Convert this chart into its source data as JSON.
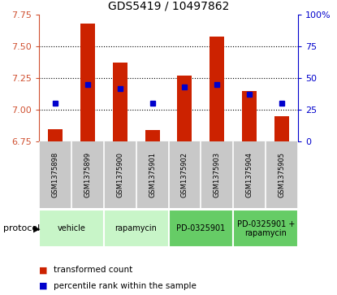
{
  "title": "GDS5419 / 10497862",
  "samples": [
    "GSM1375898",
    "GSM1375899",
    "GSM1375900",
    "GSM1375901",
    "GSM1375902",
    "GSM1375903",
    "GSM1375904",
    "GSM1375905"
  ],
  "transformed_counts": [
    6.85,
    7.68,
    7.37,
    6.84,
    7.27,
    7.58,
    7.15,
    6.95
  ],
  "percentile_ranks": [
    30,
    45,
    42,
    30,
    43,
    45,
    37,
    30
  ],
  "bar_bottom": 6.75,
  "protocols": [
    {
      "label": "vehicle",
      "samples": [
        0,
        1
      ],
      "color": "#c8f5c8"
    },
    {
      "label": "rapamycin",
      "samples": [
        2,
        3
      ],
      "color": "#c8f5c8"
    },
    {
      "label": "PD-0325901",
      "samples": [
        4,
        5
      ],
      "color": "#66cc66"
    },
    {
      "label": "PD-0325901 +\nrapamycin",
      "samples": [
        6,
        7
      ],
      "color": "#66cc66"
    }
  ],
  "ylim_left": [
    6.75,
    7.75
  ],
  "ylim_right": [
    0,
    100
  ],
  "yticks_left": [
    6.75,
    7.0,
    7.25,
    7.5,
    7.75
  ],
  "yticks_right": [
    0,
    25,
    50,
    75,
    100
  ],
  "bar_color": "#cc2200",
  "dot_color": "#0000cc",
  "grid_color": "#000000",
  "bg_color": "#ffffff",
  "label_row_bg": "#c8c8c8",
  "legend_bar_label": "transformed count",
  "legend_dot_label": "percentile rank within the sample",
  "protocol_label": "protocol"
}
